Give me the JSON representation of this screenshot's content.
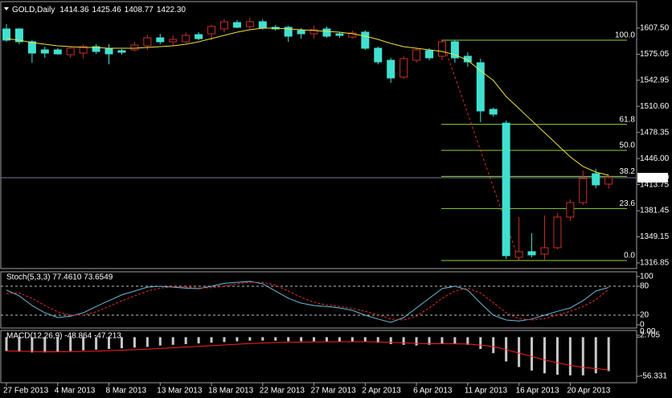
{
  "chart_data": [
    {
      "type": "candlestick",
      "title": "GOLD,Daily",
      "header_values": [
        "1414.36",
        "1425.46",
        "1408.77",
        "1422.30"
      ],
      "categories": [
        "27 Feb 2013",
        null,
        null,
        null,
        "4 Mar 2013",
        null,
        null,
        null,
        "8 Mar 2013",
        null,
        null,
        null,
        "13 Mar 2013",
        null,
        null,
        null,
        "18 Mar 2013",
        null,
        null,
        null,
        "22 Mar 2013",
        null,
        null,
        null,
        "27 Mar 2013",
        null,
        null,
        null,
        "2 Apr 2013",
        null,
        null,
        null,
        "6 Apr 2013",
        null,
        null,
        null,
        "11 Apr 2013",
        null,
        null,
        null,
        "16 Apr 2013",
        null,
        null,
        null,
        "20 Apr 2013",
        null,
        null,
        null
      ],
      "open": [
        1606.4,
        1606.4,
        1590.5,
        1580.5,
        1580.5,
        1574.5,
        1576.5,
        1584.5,
        1582.5,
        1579.5,
        1580.5,
        1585.5,
        1595.4,
        1590.5,
        1590.5,
        1599.4,
        1600.4,
        1606.4,
        1614.3,
        1609.4,
        1615.3,
        1608.4,
        1608.4,
        1604.4,
        1600.4,
        1606.4,
        1600.4,
        1596.4,
        1602.4,
        1582.5,
        1567.6,
        1546.7,
        1567.6,
        1579.5,
        1572.6,
        1590.5,
        1572.6,
        1564.6,
        1506.9,
        1489.9,
        1323.8,
        1330.8,
        1327.8,
        1335.7,
        1373.6,
        1391.5,
        1427.3,
        1414.36
      ],
      "high": [
        1612.4,
        1607.4,
        1592.5,
        1584.5,
        1582.5,
        1584.5,
        1587.5,
        1587.5,
        1587.5,
        1581.5,
        1590.5,
        1599.4,
        1600.4,
        1598.4,
        1602.4,
        1602.4,
        1611.4,
        1618.3,
        1617.3,
        1620.3,
        1618.3,
        1611.4,
        1610.4,
        1607.4,
        1610.4,
        1609.4,
        1602.4,
        1604.4,
        1604.4,
        1584.5,
        1570.6,
        1572.6,
        1582.5,
        1582.5,
        1592.5,
        1592.5,
        1577.5,
        1569.6,
        1508.9,
        1492.9,
        1373.6,
        1353.6,
        1375.5,
        1378.6,
        1395.4,
        1431.3,
        1433.3,
        1425.46
      ],
      "low": [
        1590.5,
        1587.5,
        1564.6,
        1570.6,
        1574.5,
        1570.6,
        1569.6,
        1575.5,
        1562.6,
        1574.5,
        1578.5,
        1580.5,
        1587.5,
        1585.5,
        1588.5,
        1592.5,
        1592.5,
        1602.4,
        1607.4,
        1606.4,
        1605.4,
        1604.4,
        1590.5,
        1594.4,
        1594.4,
        1595.4,
        1595.4,
        1594.4,
        1580.5,
        1562.6,
        1539.7,
        1544.7,
        1564.6,
        1567.6,
        1567.6,
        1564.6,
        1559.6,
        1490.9,
        1497.9,
        1321.8,
        1319.8,
        1323.8,
        1320.8,
        1333.7,
        1368.6,
        1388.5,
        1409.4,
        1408.77
      ],
      "close": [
        1592.5,
        1590.5,
        1576.5,
        1576.5,
        1575.5,
        1582.5,
        1584.5,
        1578.5,
        1575.5,
        1577.5,
        1586.5,
        1595.4,
        1590.5,
        1593.4,
        1598.4,
        1594.4,
        1609.4,
        1615.3,
        1608.4,
        1615.3,
        1607.4,
        1606.4,
        1597.4,
        1600.4,
        1605.4,
        1597.4,
        1598.4,
        1601.4,
        1582.5,
        1565.6,
        1545.7,
        1569.6,
        1580.5,
        1570.6,
        1590.5,
        1570.6,
        1565.6,
        1504.9,
        1500.9,
        1325.8,
        1330.8,
        1326.8,
        1335.7,
        1373.6,
        1391.5,
        1421.3,
        1413.4,
        1422.3
      ],
      "bull_color": "#c8302a",
      "bear_color": "#40e0d0",
      "overlay": {
        "color": "#f0e040",
        "values": [
          1594.4,
          1592.5,
          1589.5,
          1587.5,
          1585.5,
          1584.5,
          1583.5,
          1583.5,
          1582.5,
          1582.5,
          1582.5,
          1583.5,
          1584.5,
          1585.5,
          1587.5,
          1590.5,
          1594.4,
          1598.4,
          1602.4,
          1605.4,
          1607.4,
          1607.4,
          1606.4,
          1605.4,
          1604.4,
          1603.4,
          1602.4,
          1600.4,
          1597.4,
          1593.4,
          1588.5,
          1584.5,
          1582.5,
          1580.5,
          1578.5,
          1574.5,
          1567.6,
          1554.6,
          1542.7,
          1522.8,
          1507.9,
          1492.9,
          1478.0,
          1463.1,
          1448.2,
          1436.2,
          1429.3,
          1425.3
        ]
      },
      "fib": {
        "color": "#8fcf3f",
        "trend_color": "#e03020",
        "levels": [
          {
            "label": "100.0",
            "value": 1592.5
          },
          {
            "label": "61.8",
            "value": 1488.3
          },
          {
            "label": "50.0",
            "value": 1456.2
          },
          {
            "label": "38.2",
            "value": 1424.0
          },
          {
            "label": "23.6",
            "value": 1384.2
          },
          {
            "label": "0.0",
            "value": 1319.8
          }
        ]
      },
      "last_price_color": "#7a7a9a",
      "ylim": [
        1309.9,
        1640.2
      ],
      "yticks": [
        {
          "value": 1607.5,
          "label": "1607.50"
        },
        1575.05,
        1542.95,
        {
          "value": 1510.6,
          "label": "1510.60"
        },
        1478.35,
        {
          "value": 1446,
          "label": "1446.00"
        },
        1413.75,
        1381.45,
        1349.15,
        1316.85
      ]
    },
    {
      "type": "line",
      "title": "Stoch(5,3,3) 77.4610 73.6549",
      "series": [
        {
          "color": "#6cb8d8",
          "dashed": false,
          "values": [
            72,
            60,
            40,
            25,
            15,
            18,
            25,
            38,
            50,
            62,
            70,
            78,
            80,
            78,
            76,
            75,
            80,
            86,
            88,
            90,
            85,
            70,
            55,
            45,
            40,
            38,
            35,
            30,
            20,
            12,
            5,
            15,
            35,
            55,
            75,
            80,
            72,
            45,
            20,
            10,
            8,
            12,
            20,
            28,
            35,
            50,
            70,
            77.461
          ]
        },
        {
          "color": "#e03030",
          "dashed": true,
          "values": [
            65,
            66,
            55,
            40,
            27,
            20,
            20,
            27,
            38,
            50,
            60,
            70,
            76,
            79,
            78,
            76,
            77,
            80,
            85,
            88,
            88,
            82,
            70,
            57,
            47,
            41,
            38,
            34,
            28,
            21,
            12,
            10,
            18,
            35,
            55,
            70,
            76,
            66,
            46,
            25,
            13,
            10,
            13,
            20,
            28,
            38,
            52,
            73.6549
          ]
        }
      ],
      "levels": [
        80,
        20
      ],
      "ylim": [
        -6.6,
        108.2
      ],
      "yticks": [
        100,
        80,
        20,
        0
      ]
    },
    {
      "type": "macd",
      "title": "MACD(12,26,9) -48.864 -47.213",
      "series": [
        {
          "color": "#c8c8c8",
          "style": "bar",
          "values": [
            -20,
            -21,
            -22,
            -22,
            -21,
            -20,
            -19,
            -18,
            -17,
            -16,
            -15,
            -14,
            -12,
            -11,
            -10,
            -9,
            -8,
            -7,
            -6,
            -5,
            -5,
            -5,
            -6,
            -6,
            -6,
            -6,
            -6,
            -6,
            -7,
            -8,
            -10,
            -11,
            -12,
            -11,
            -10,
            -10,
            -11,
            -17,
            -23,
            -35,
            -43,
            -48,
            -52,
            -54,
            -55,
            -55,
            -52,
            -48.864
          ]
        },
        {
          "color": "#ff2020",
          "style": "line",
          "values": [
            -20,
            -20.2,
            -20.6,
            -21,
            -21,
            -20.8,
            -20.4,
            -20,
            -19.4,
            -18.7,
            -18,
            -17.2,
            -16.2,
            -15.2,
            -14.2,
            -13.2,
            -12.2,
            -11.2,
            -10.2,
            -9.2,
            -8.4,
            -7.7,
            -7.4,
            -7.1,
            -6.9,
            -6.7,
            -6.6,
            -6.5,
            -6.6,
            -6.9,
            -7.5,
            -8.2,
            -9,
            -9.4,
            -9.5,
            -9.6,
            -9.9,
            -11.3,
            -13.6,
            -17.9,
            -22.9,
            -27.9,
            -32.7,
            -37,
            -40.6,
            -43.5,
            -45.2,
            -47.213
          ]
        }
      ],
      "ylim": [
        -64.43,
        8.49
      ],
      "yticks": [
        2.705,
        {
          "value": 0,
          "label": "0.00"
        },
        -56.331
      ]
    }
  ]
}
